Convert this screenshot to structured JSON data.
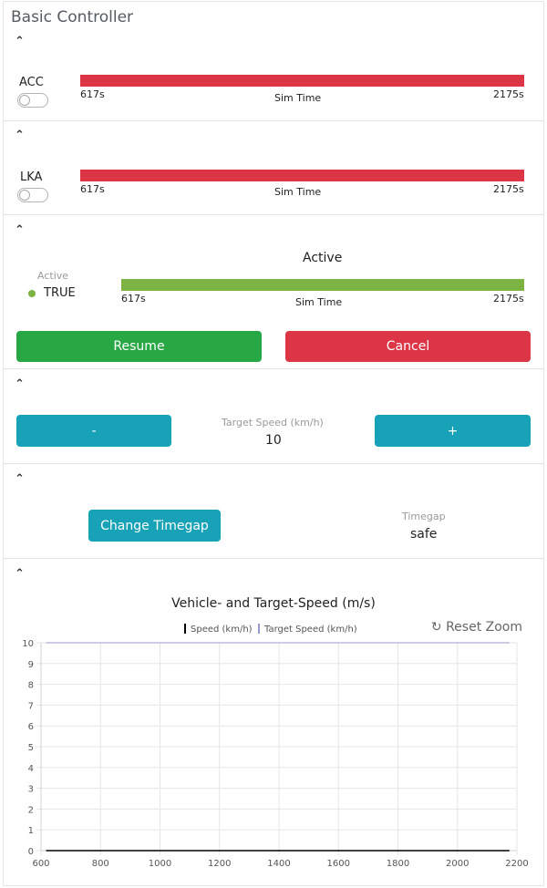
{
  "title": "Basic Controller",
  "caret": "⌃",
  "acc": {
    "label": "ACC",
    "bar_start": "617s",
    "bar_end": "2175s",
    "bar_label": "Sim Time",
    "color": "#dc3545",
    "enabled": false
  },
  "lka": {
    "label": "LKA",
    "bar_start": "617s",
    "bar_end": "2175s",
    "bar_label": "Sim Time",
    "color": "#dc3545",
    "enabled": false
  },
  "active": {
    "header": "Active",
    "status_label": "Active",
    "status_value": "TRUE",
    "bar_start": "617s",
    "bar_end": "2175s",
    "bar_label": "Sim Time",
    "color": "#7cb342",
    "resume_label": "Resume",
    "cancel_label": "Cancel"
  },
  "speed": {
    "minus_label": "-",
    "plus_label": "+",
    "caption": "Target Speed (km/h)",
    "value": "10"
  },
  "timegap": {
    "button_label": "Change Timegap",
    "caption": "Timegap",
    "value": "safe"
  },
  "chart_data": {
    "type": "line",
    "title": "Vehicle- and Target-Speed (m/s)",
    "reset_label": "↻ Reset Zoom",
    "legend": "top",
    "series": [
      {
        "name": "Speed (km/h)",
        "color": "#000000",
        "points": [
          [
            617,
            0
          ],
          [
            2175,
            0
          ]
        ]
      },
      {
        "name": "Target Speed (km/h)",
        "color": "#9999cc",
        "points": [
          [
            617,
            10
          ],
          [
            2175,
            10
          ]
        ]
      }
    ],
    "xlim": [
      600,
      2200
    ],
    "ylim": [
      0,
      10
    ],
    "xticks": [
      600,
      800,
      1000,
      1200,
      1400,
      1600,
      1800,
      2000,
      2200
    ],
    "yticks": [
      0,
      1,
      2,
      3,
      4,
      5,
      6,
      7,
      8,
      9,
      10
    ],
    "grid": true
  }
}
